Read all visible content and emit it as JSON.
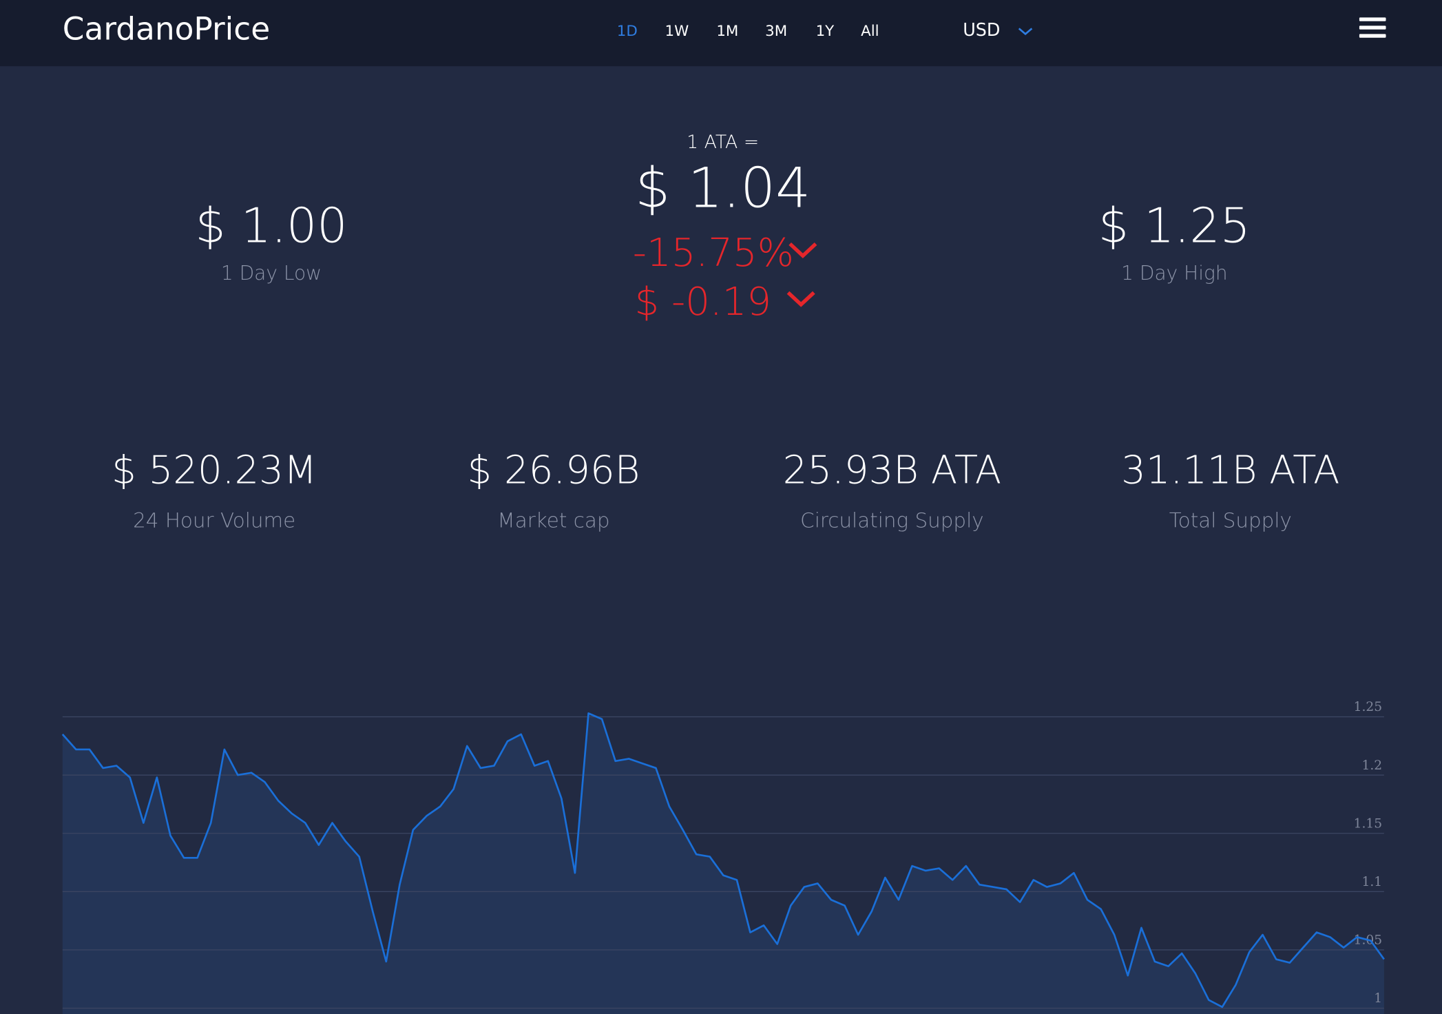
{
  "header": {
    "logo": "CardanoPrice",
    "ranges": [
      "1D",
      "1W",
      "1M",
      "3M",
      "1Y",
      "All"
    ],
    "active": "1D",
    "currency": "USD"
  },
  "price": {
    "unit_label": "1 ATA =",
    "price": "$ 1.04",
    "change_percent": "-15.75%",
    "change_amount": "$ -0.19"
  },
  "low": {
    "value": "$ 1.00",
    "label": "1 Day Low"
  },
  "high": {
    "value": "$ 1.25",
    "label": "1 Day High"
  },
  "stats": [
    {
      "value": "$ 520.23M",
      "label": "24 Hour Volume"
    },
    {
      "value": "$ 26.96B",
      "label": "Market cap"
    },
    {
      "value": "25.93B ATA",
      "label": "Circulating Supply"
    },
    {
      "value": "31.11B ATA",
      "label": "Total Supply"
    }
  ],
  "chart_data": {
    "type": "line",
    "color": "#1a6fd8",
    "grid": true,
    "ylim": [
      0.995,
      1.265
    ],
    "yticks": [
      1,
      1.05,
      1.1,
      1.15,
      1.2,
      1.25
    ],
    "values": [
      1.235,
      1.222,
      1.222,
      1.206,
      1.208,
      1.198,
      1.159,
      1.198,
      1.148,
      1.129,
      1.129,
      1.159,
      1.222,
      1.2,
      1.202,
      1.194,
      1.178,
      1.167,
      1.159,
      1.14,
      1.159,
      1.143,
      1.13,
      1.083,
      1.04,
      1.106,
      1.153,
      1.165,
      1.173,
      1.188,
      1.225,
      1.206,
      1.208,
      1.229,
      1.235,
      1.208,
      1.212,
      1.18,
      1.116,
      1.253,
      1.248,
      1.212,
      1.214,
      1.21,
      1.206,
      1.173,
      1.153,
      1.132,
      1.13,
      1.114,
      1.11,
      1.065,
      1.071,
      1.055,
      1.088,
      1.104,
      1.107,
      1.093,
      1.088,
      1.063,
      1.083,
      1.112,
      1.093,
      1.122,
      1.118,
      1.12,
      1.11,
      1.122,
      1.106,
      1.104,
      1.102,
      1.091,
      1.11,
      1.104,
      1.107,
      1.116,
      1.093,
      1.085,
      1.063,
      1.028,
      1.069,
      1.04,
      1.036,
      1.047,
      1.03,
      1.007,
      1.001,
      1.02,
      1.048,
      1.063,
      1.042,
      1.039,
      1.052,
      1.065,
      1.061,
      1.052,
      1.061,
      1.058,
      1.042
    ]
  }
}
